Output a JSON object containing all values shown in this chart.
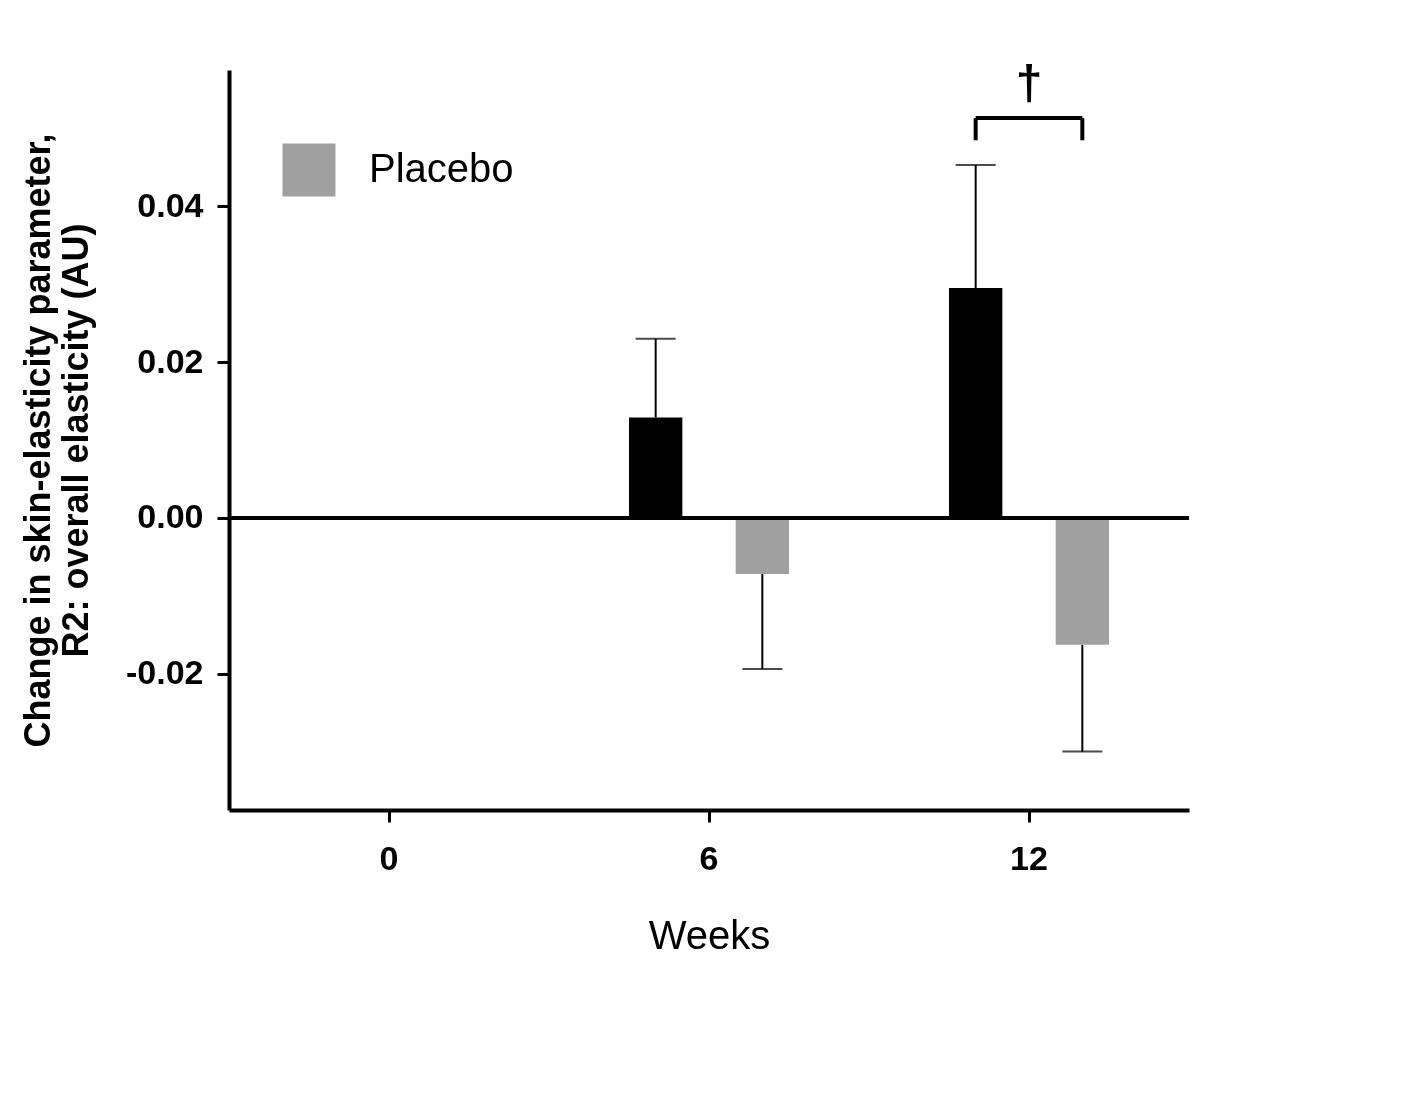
{
  "chart_data": {
    "type": "bar",
    "categories": [
      "0",
      "6",
      "12"
    ],
    "series": [
      {
        "color": "#000000",
        "values": [
          0,
          0.0129,
          0.0295
        ],
        "errors": [
          null,
          [
            0.0129,
            0.023
          ],
          [
            0.0295,
            0.0453
          ]
        ]
      },
      {
        "name": "Placebo",
        "color": "#a0a0a0",
        "values": [
          0,
          -0.0072,
          -0.0163
        ],
        "errors": [
          null,
          [
            -0.0194,
            -0.0072
          ],
          [
            -0.03,
            -0.0163
          ]
        ]
      }
    ],
    "xlabel": "Weeks",
    "ylabel": "Change in skin-elasticity parameter,\nR2: overall elasticity (AU)",
    "ylim": [
      -0.0375,
      0.0575
    ],
    "yticks": [
      {
        "value": -0.02,
        "label": "-0.02"
      },
      {
        "value": 0,
        "label": "0.00"
      },
      {
        "value": 0.02,
        "label": "0.02"
      },
      {
        "value": 0.04,
        "label": "0.04"
      }
    ],
    "ref_lines": [
      {
        "axis": "y",
        "value": 0,
        "color": "#000000"
      }
    ],
    "annotations": [
      "†"
    ],
    "legend": "top left",
    "grid": false
  }
}
